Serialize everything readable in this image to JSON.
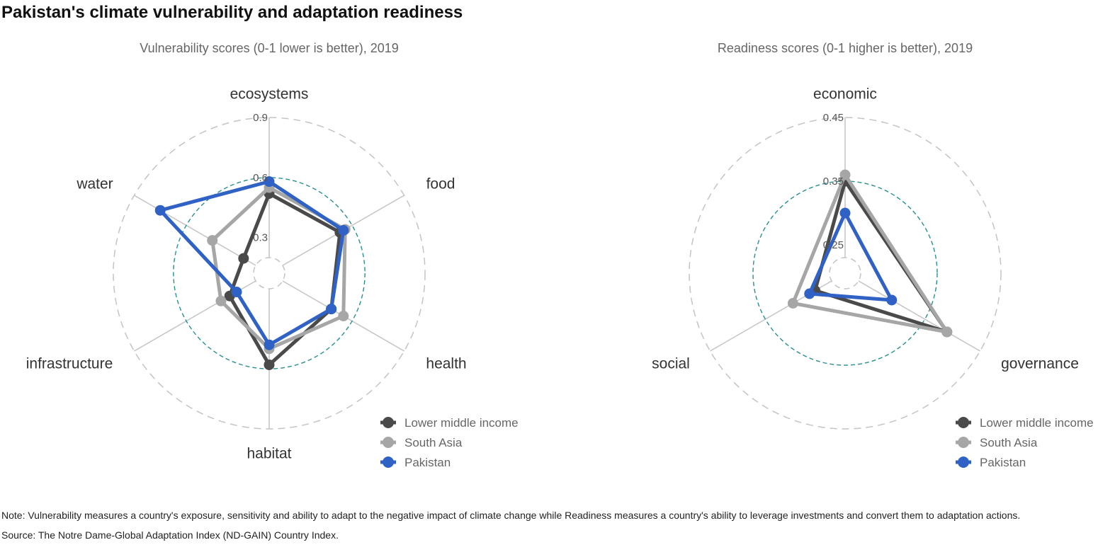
{
  "title": "Pakistan's climate vulnerability and adaptation readiness",
  "note": "Note: Vulnerability measures a country's exposure, sensitivity and ability to adapt to the negative impact of climate change while Readiness measures a country's ability to leverage investments and convert them to adaptation actions.",
  "source": "Source: The Notre Dame-Global Adaptation Index (ND-GAIN) Country Index.",
  "colors": {
    "lower_middle_income": "#4a4a4a",
    "south_asia": "#a6a6a6",
    "pakistan": "#2f62c4",
    "reference_circle": "#2a8f8f",
    "grid_circle": "#c4c4c4",
    "spoke": "#c4c4c4"
  },
  "chart_data": [
    {
      "type": "radar",
      "title": "Vulnerability scores (0-1 lower is better), 2019",
      "categories": [
        "ecosystems",
        "food",
        "health",
        "habitat",
        "infrastructure",
        "water"
      ],
      "rlim": [
        0.2,
        0.9
      ],
      "ticks": [
        "0.3",
        "0.6",
        "0.9"
      ],
      "tick_values": [
        0.3,
        0.6,
        0.9
      ],
      "reference_value": 0.6,
      "series": [
        {
          "name": "Lower middle income",
          "values": [
            0.52,
            0.53,
            0.48,
            0.58,
            0.35,
            0.27
          ]
        },
        {
          "name": "South Asia",
          "values": [
            0.55,
            0.56,
            0.55,
            0.5,
            0.4,
            0.45
          ]
        },
        {
          "name": "Pakistan",
          "values": [
            0.58,
            0.55,
            0.48,
            0.48,
            0.31,
            0.75
          ]
        }
      ],
      "legend": "bottom-right",
      "grid": true
    },
    {
      "type": "radar",
      "title": "Readiness scores (0-1 higher is better), 2019",
      "categories": [
        "economic",
        "governance",
        "social"
      ],
      "rlim": [
        0.23,
        0.45
      ],
      "ticks": [
        "0.25",
        "0.35",
        "0.45"
      ],
      "tick_values": [
        0.25,
        0.35,
        0.45
      ],
      "reference_value": 0.35,
      "series": [
        {
          "name": "Lower middle income",
          "values": [
            0.35,
            0.39,
            0.26
          ]
        },
        {
          "name": "South Asia",
          "values": [
            0.36,
            0.39,
            0.3
          ]
        },
        {
          "name": "Pakistan",
          "values": [
            0.3,
            0.29,
            0.27
          ]
        }
      ],
      "legend": "bottom-right",
      "grid": true
    }
  ]
}
